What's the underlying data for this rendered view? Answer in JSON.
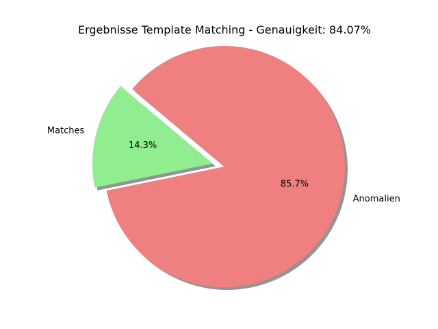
{
  "chart_data": {
    "type": "pie",
    "title": "Ergebnisse Template Matching - Genauigkeit: 84.07%",
    "labels": [
      "Matches",
      "Anomalien"
    ],
    "values": [
      14.3,
      85.7
    ],
    "percent_labels": [
      "14.3%",
      "85.7%"
    ],
    "colors": [
      "#90ee90",
      "#f08080"
    ],
    "explode": [
      0.1,
      0
    ],
    "shadow": true,
    "start_angle_deg": 140
  }
}
